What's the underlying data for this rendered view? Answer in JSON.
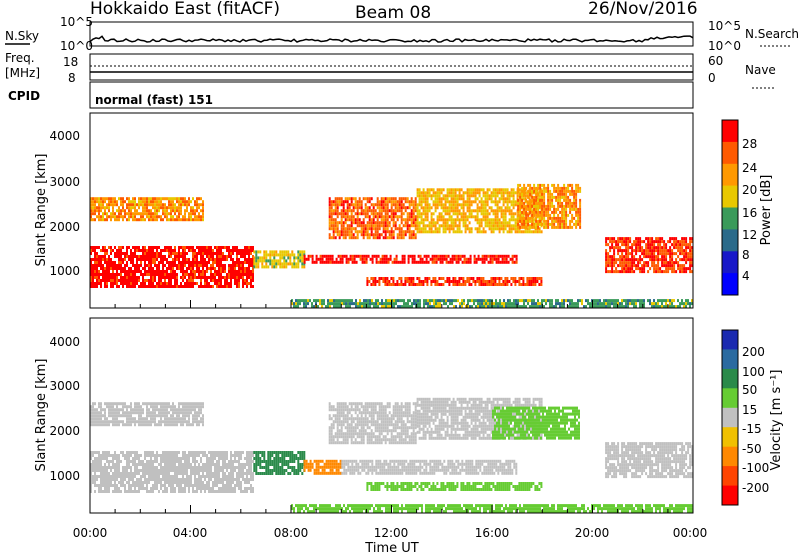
{
  "header": {
    "station": "Hokkaido East (fitACF)",
    "beam": "Beam 08",
    "date": "26/Nov/2016"
  },
  "noise_panel": {
    "left_label": "N.Sky",
    "right_label": "N.Search",
    "ticks_left": [
      "10^5",
      "10^0"
    ],
    "ticks_right": [
      "10^5",
      "10^0"
    ]
  },
  "freq_panel": {
    "left_label_line1": "Freq.",
    "left_label_line2": "[MHz]",
    "right_label": "Nave",
    "ticks_left": [
      "18",
      "8"
    ],
    "ticks_right": [
      "60",
      "0"
    ]
  },
  "cpid_panel": {
    "label": "CPID",
    "mode_text": "normal (fast) 151"
  },
  "power_panel": {
    "ylabel": "Slant Range [km]",
    "yticks": [
      "4000",
      "3000",
      "2000",
      "1000"
    ],
    "colorbar_label": "Power [dB]",
    "colorbar_ticks": [
      "28",
      "24",
      "20",
      "16",
      "12",
      "8",
      "4"
    ],
    "colorbar_colors": [
      "#ff0000",
      "#ff5a00",
      "#ff9900",
      "#e8c800",
      "#3a9a5a",
      "#2a6a8a",
      "#1818c8",
      "#0000ff"
    ]
  },
  "velocity_panel": {
    "ylabel": "Slant Range [km]",
    "yticks": [
      "4000",
      "3000",
      "2000",
      "1000"
    ],
    "colorbar_label": "Velocity [m s⁻¹]",
    "colorbar_ticks": [
      "200",
      "100",
      "50",
      "15",
      "-15",
      "-50",
      "-100",
      "-200"
    ],
    "colorbar_colors": [
      "#1a2ab0",
      "#2a6aa0",
      "#2a8a4a",
      "#66cc33",
      "#c0c0c0",
      "#f0c000",
      "#ff8800",
      "#ff4400",
      "#ff0000"
    ]
  },
  "x_axis": {
    "label": "Time UT",
    "ticks": [
      "00:00",
      "04:00",
      "08:00",
      "12:00",
      "16:00",
      "20:00",
      "00:00"
    ]
  },
  "chart_data": [
    {
      "type": "heatmap",
      "title": "Power",
      "xlabel": "Time UT",
      "ylabel": "Slant Range [km]",
      "xlim_hours": [
        0,
        24
      ],
      "ylim": [
        200,
        4600
      ],
      "colorbar": "Power [dB]",
      "blocks": [
        {
          "t0": 0.0,
          "t1": 6.5,
          "r0": 700,
          "r1": 1600,
          "level": 28
        },
        {
          "t0": 0.0,
          "t1": 4.5,
          "r0": 2200,
          "r1": 2700,
          "level": 22
        },
        {
          "t0": 6.5,
          "t1": 8.5,
          "r0": 1100,
          "r1": 1500,
          "level": 18
        },
        {
          "t0": 8.5,
          "t1": 17.0,
          "r0": 1200,
          "r1": 1400,
          "level": 28
        },
        {
          "t0": 9.5,
          "t1": 13.0,
          "r0": 1800,
          "r1": 2700,
          "level": 24
        },
        {
          "t0": 13.0,
          "t1": 18.0,
          "r0": 1900,
          "r1": 2900,
          "level": 20
        },
        {
          "t0": 17.0,
          "t1": 19.5,
          "r0": 2000,
          "r1": 3000,
          "level": 22
        },
        {
          "t0": 20.5,
          "t1": 24.0,
          "r0": 1000,
          "r1": 1800,
          "level": 26
        },
        {
          "t0": 11.0,
          "t1": 18.0,
          "r0": 700,
          "r1": 900,
          "level": 26
        },
        {
          "t0": 8.0,
          "t1": 24.0,
          "r0": 250,
          "r1": 400,
          "level": 14
        }
      ]
    },
    {
      "type": "heatmap",
      "title": "Velocity",
      "xlabel": "Time UT",
      "ylabel": "Slant Range [km]",
      "xlim_hours": [
        0,
        24
      ],
      "ylim": [
        200,
        4600
      ],
      "colorbar": "Velocity [m s⁻¹]",
      "blocks": [
        {
          "t0": 0.0,
          "t1": 6.5,
          "r0": 700,
          "r1": 1600,
          "level": 0
        },
        {
          "t0": 0.0,
          "t1": 4.5,
          "r0": 2200,
          "r1": 2700,
          "level": 0
        },
        {
          "t0": 6.5,
          "t1": 8.5,
          "r0": 1100,
          "r1": 1600,
          "level": 60
        },
        {
          "t0": 8.5,
          "t1": 10.0,
          "r0": 1100,
          "r1": 1400,
          "level": -60
        },
        {
          "t0": 10.0,
          "t1": 17.0,
          "r0": 1100,
          "r1": 1400,
          "level": 0
        },
        {
          "t0": 9.5,
          "t1": 13.0,
          "r0": 1800,
          "r1": 2700,
          "level": 0
        },
        {
          "t0": 13.0,
          "t1": 18.0,
          "r0": 1900,
          "r1": 2800,
          "level": 0
        },
        {
          "t0": 16.0,
          "t1": 19.5,
          "r0": 1900,
          "r1": 2600,
          "level": 30
        },
        {
          "t0": 20.5,
          "t1": 24.0,
          "r0": 1000,
          "r1": 1800,
          "level": 0
        },
        {
          "t0": 11.0,
          "t1": 18.0,
          "r0": 700,
          "r1": 900,
          "level": 40
        },
        {
          "t0": 8.0,
          "t1": 24.0,
          "r0": 250,
          "r1": 400,
          "level": 40
        }
      ]
    }
  ]
}
